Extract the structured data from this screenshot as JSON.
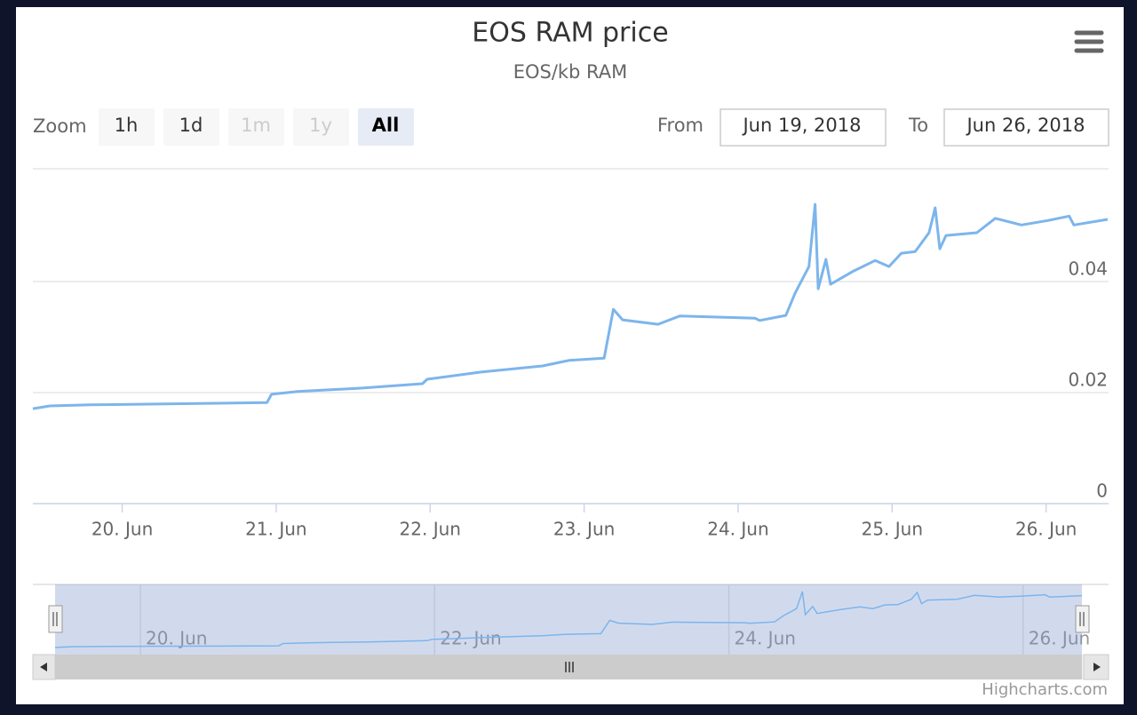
{
  "chart_data": {
    "type": "line",
    "title": "EOS RAM price",
    "subtitle": "EOS/kb RAM",
    "range_selector": {
      "label": "Zoom",
      "buttons": [
        "1h",
        "1d",
        "1m",
        "1y",
        "All"
      ],
      "from_label": "From",
      "from": "Jun 19, 2018",
      "to_label": "To",
      "to": "Jun 26, 2018"
    },
    "x": [
      19.42,
      19.53,
      19.79,
      20.94,
      20.97,
      21.14,
      21.55,
      21.95,
      21.98,
      22.33,
      22.73,
      22.9,
      23.13,
      23.19,
      23.25,
      23.48,
      23.62,
      24.11,
      24.14,
      24.31,
      24.37,
      24.46,
      24.5,
      24.52,
      24.57,
      24.6,
      24.75,
      24.89,
      24.98,
      25.06,
      25.15,
      25.24,
      25.28,
      25.31,
      25.35,
      25.55,
      25.67,
      25.84,
      26.01,
      26.15,
      26.18,
      26.4
    ],
    "values": [
      0.0171,
      0.0176,
      0.0178,
      0.0182,
      0.0197,
      0.0202,
      0.0208,
      0.0216,
      0.0224,
      0.0237,
      0.0248,
      0.0258,
      0.0262,
      0.035,
      0.0331,
      0.0323,
      0.0338,
      0.0334,
      0.033,
      0.0339,
      0.0379,
      0.0427,
      0.0539,
      0.0387,
      0.044,
      0.0395,
      0.0419,
      0.0438,
      0.0427,
      0.0451,
      0.0454,
      0.0488,
      0.0533,
      0.0459,
      0.0483,
      0.0488,
      0.0514,
      0.0502,
      0.051,
      0.0518,
      0.0502,
      0.0512
    ],
    "color": "#7cb5ec",
    "xlim": [
      19.42,
      26.4
    ],
    "xticks": [
      {
        "value": 20,
        "label": "20. Jun"
      },
      {
        "value": 21,
        "label": "21. Jun"
      },
      {
        "value": 22,
        "label": "22. Jun"
      },
      {
        "value": 23,
        "label": "23. Jun"
      },
      {
        "value": 24,
        "label": "24. Jun"
      },
      {
        "value": 25,
        "label": "25. Jun"
      },
      {
        "value": 26,
        "label": "26. Jun"
      }
    ],
    "ylim": [
      0,
      0.06
    ],
    "yticks": [
      0,
      0.02,
      0.04
    ],
    "grid": true,
    "navigator_xticks": [
      {
        "value": 20,
        "label": "20. Jun"
      },
      {
        "value": 22,
        "label": "22. Jun"
      },
      {
        "value": 24,
        "label": "24. Jun"
      },
      {
        "value": 26,
        "label": "26. Jun"
      }
    ],
    "credits": "Highcharts.com"
  }
}
